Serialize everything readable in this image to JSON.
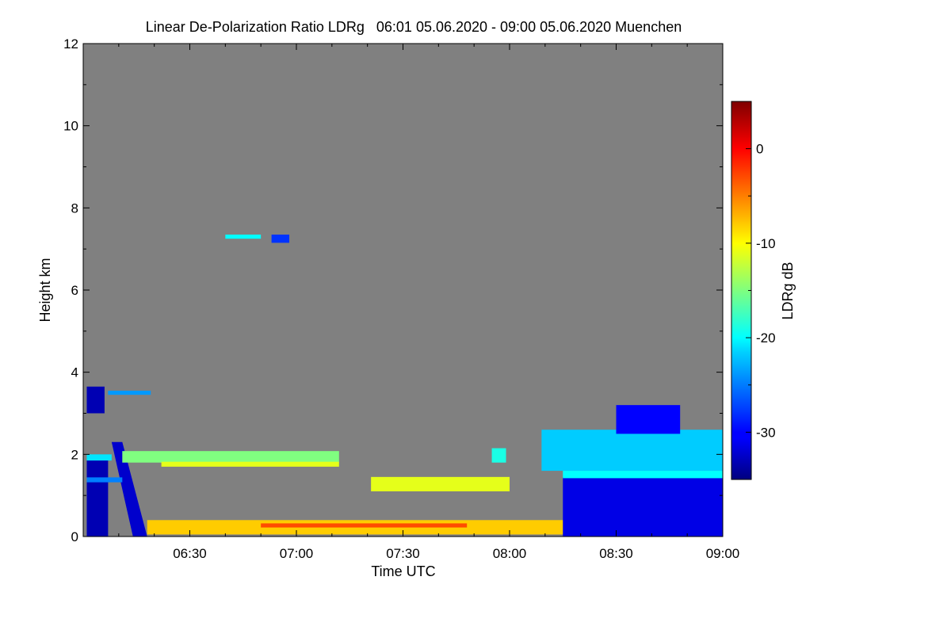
{
  "chart_data": {
    "type": "heatmap",
    "title": "Linear De-Polarization Ratio LDRg   06:01 05.06.2020 - 09:00 05.06.2020 Muenchen",
    "xlabel": "Time UTC",
    "ylabel": "Height km",
    "x_unit": "minutes after 06:00 UTC",
    "xlim": [
      1,
      180
    ],
    "ylim": [
      0,
      12
    ],
    "x_ticks": [
      {
        "value": 30,
        "label": "06:30"
      },
      {
        "value": 60,
        "label": "07:00"
      },
      {
        "value": 90,
        "label": "07:30"
      },
      {
        "value": 120,
        "label": "08:00"
      },
      {
        "value": 150,
        "label": "08:30"
      },
      {
        "value": 180,
        "label": "09:00"
      }
    ],
    "y_ticks": [
      {
        "value": 0,
        "label": "0"
      },
      {
        "value": 2,
        "label": "2"
      },
      {
        "value": 4,
        "label": "4"
      },
      {
        "value": 6,
        "label": "6"
      },
      {
        "value": 8,
        "label": "8"
      },
      {
        "value": 10,
        "label": "10"
      },
      {
        "value": 12,
        "label": "12"
      }
    ],
    "colorbar": {
      "label": "LDRg dB",
      "range": [
        -35,
        5
      ],
      "ticks": [
        {
          "value": 0,
          "label": "0"
        },
        {
          "value": -10,
          "label": "-10"
        },
        {
          "value": -20,
          "label": "-20"
        },
        {
          "value": -30,
          "label": "-30"
        }
      ],
      "colormap": "jet"
    },
    "background_color": "#808080",
    "regions": [
      {
        "name": "low-clouds-early",
        "t0": 1,
        "t1": 7,
        "h0": 0,
        "h1": 1.9,
        "ldr": -33
      },
      {
        "name": "slanted-fall-streak",
        "t0": 8,
        "t1": 18,
        "h0": 0,
        "h1": 2.3,
        "ldr": -32
      },
      {
        "name": "layer-1.4km",
        "t0": 1,
        "t1": 11,
        "h0": 1.32,
        "h1": 1.44,
        "ldr": -25
      },
      {
        "name": "layer-1.95km-early",
        "t0": 1,
        "t1": 8,
        "h0": 1.85,
        "h1": 2.0,
        "ldr": -21
      },
      {
        "name": "layer-2.0km",
        "t0": 11,
        "t1": 72,
        "h0": 1.8,
        "h1": 2.08,
        "ldr": -15
      },
      {
        "name": "layer-1.8km",
        "t0": 22,
        "t1": 72,
        "h0": 1.7,
        "h1": 1.82,
        "ldr": -11
      },
      {
        "name": "cloud-3.4km",
        "t0": 1,
        "t1": 6,
        "h0": 3.0,
        "h1": 3.65,
        "ldr": -33
      },
      {
        "name": "cloud-3.5km",
        "t0": 7,
        "t1": 19,
        "h0": 3.45,
        "h1": 3.55,
        "ldr": -24
      },
      {
        "name": "cloud-7.3km",
        "t0": 40,
        "t1": 50,
        "h0": 7.25,
        "h1": 7.35,
        "ldr": -20
      },
      {
        "name": "cloud-7.3km-b",
        "t0": 53,
        "t1": 58,
        "h0": 7.15,
        "h1": 7.35,
        "ldr": -28
      },
      {
        "name": "aerosol-1.3km",
        "t0": 81,
        "t1": 120,
        "h0": 1.1,
        "h1": 1.45,
        "ldr": -11
      },
      {
        "name": "patch-2.0km",
        "t0": 115,
        "t1": 119,
        "h0": 1.8,
        "h1": 2.15,
        "ldr": -19
      },
      {
        "name": "boundary-layer",
        "t0": 18,
        "t1": 180,
        "h0": 0.05,
        "h1": 0.4,
        "ldr": -8
      },
      {
        "name": "surface-red",
        "t0": 50,
        "t1": 108,
        "h0": 0.22,
        "h1": 0.32,
        "ldr": -3
      },
      {
        "name": "cloud-late-high",
        "t0": 129,
        "t1": 180,
        "h0": 1.6,
        "h1": 2.6,
        "ldr": -22
      },
      {
        "name": "cloud-late-top",
        "t0": 150,
        "t1": 168,
        "h0": 2.5,
        "h1": 3.2,
        "ldr": -30
      },
      {
        "name": "cloud-late-low",
        "t0": 135,
        "t1": 180,
        "h0": 0,
        "h1": 1.45,
        "ldr": -31
      },
      {
        "name": "cloud-base-1.4km",
        "t0": 135,
        "t1": 180,
        "h0": 1.42,
        "h1": 1.6,
        "ldr": -20
      }
    ]
  }
}
